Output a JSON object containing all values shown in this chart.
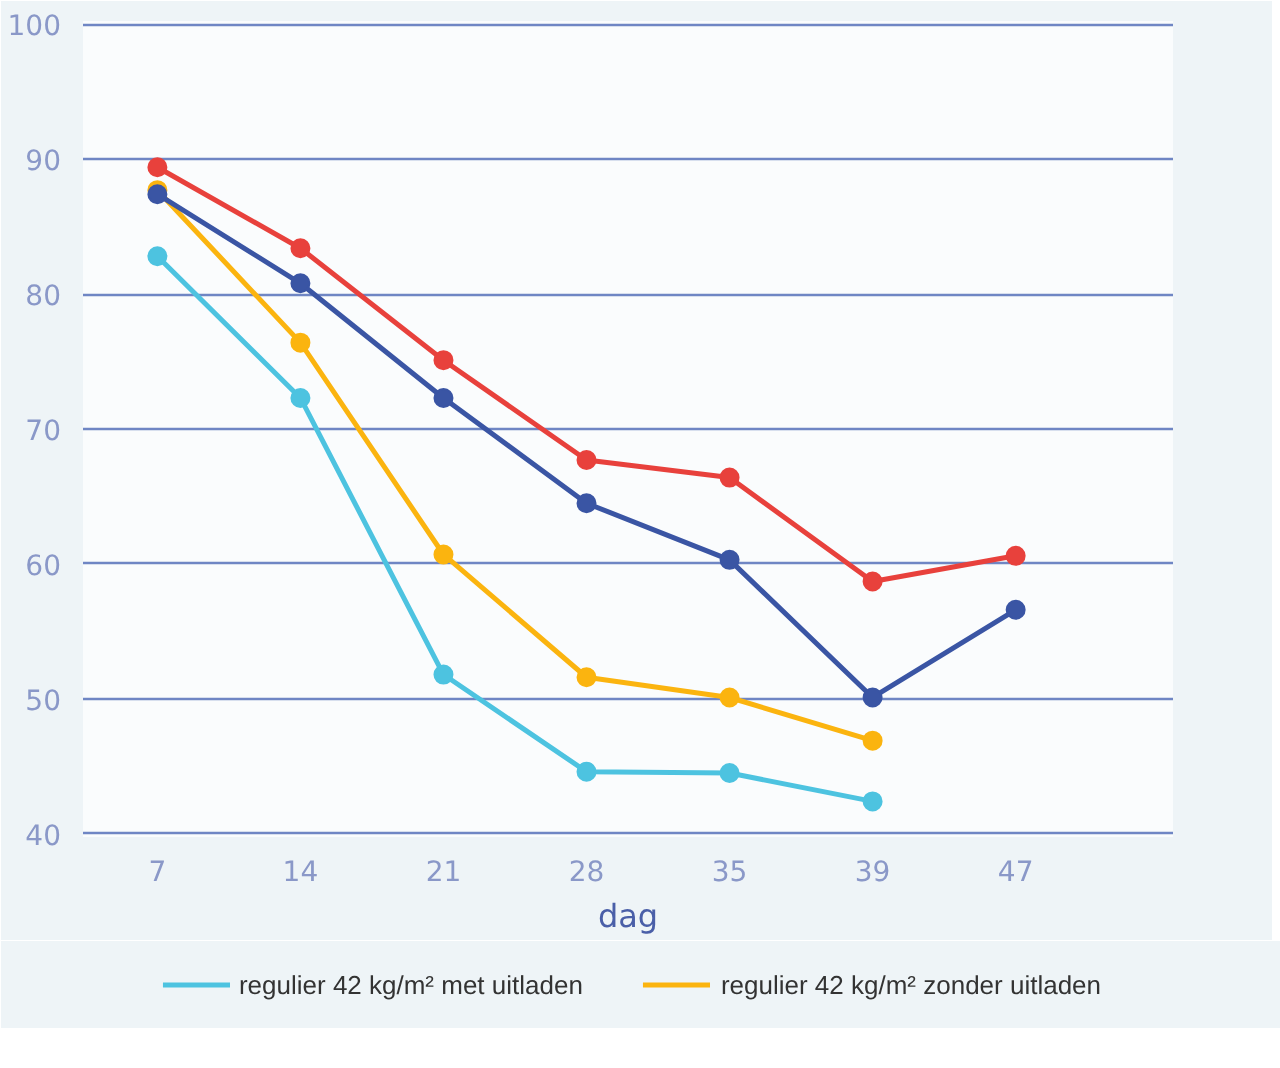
{
  "chart_data": {
    "type": "line",
    "xlabel": "dag",
    "categories": [
      "7",
      "14",
      "21",
      "28",
      "35",
      "39",
      "47"
    ],
    "series": [
      {
        "name": "regulier 42 kg/m² met uitladen",
        "color": "#4dc3e0",
        "values": [
          82.8,
          72.3,
          51.8,
          44.6,
          44.5,
          42.4,
          null
        ]
      },
      {
        "name": "regulier 42 kg/m² zonder uitladen",
        "color": "#fbb40f",
        "values": [
          87.7,
          76.4,
          60.7,
          51.6,
          50.1,
          46.9,
          null
        ]
      },
      {
        "color": "#e8413c",
        "values": [
          89.4,
          83.4,
          75.1,
          67.7,
          66.4,
          58.7,
          60.6
        ]
      },
      {
        "color": "#3a55a4",
        "values": [
          87.4,
          80.8,
          72.3,
          64.5,
          60.3,
          50.1,
          56.6
        ]
      }
    ],
    "ylim": [
      40,
      100
    ],
    "yticks": [
      40,
      50,
      60,
      70,
      80,
      90,
      100
    ],
    "grid": "y",
    "legend": "bottom",
    "marker": "circle",
    "line_style": "solid"
  }
}
